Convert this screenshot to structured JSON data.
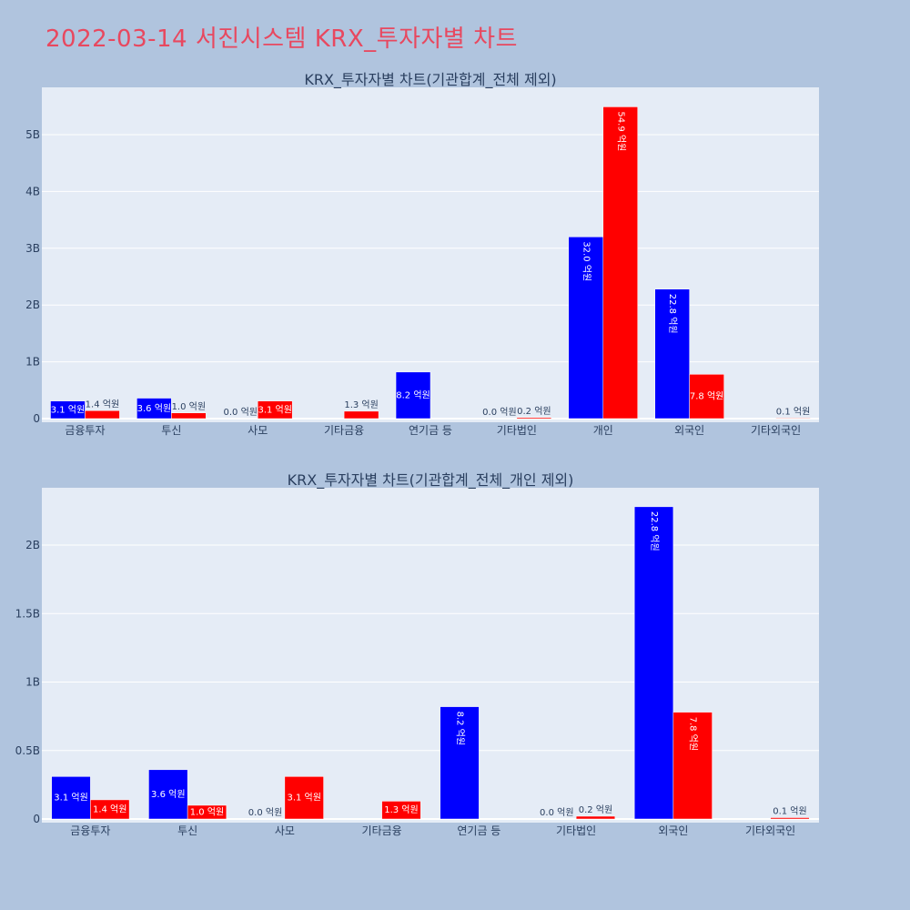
{
  "page": {
    "title": "2022-03-14 서진시스템 KRX_투자자별 차트"
  },
  "colors": {
    "background": "#b0c4de",
    "plot_bg": "#e5ecf6",
    "title": "#e8485f",
    "buy": "#0000ff",
    "sell": "#ff0000"
  },
  "chart_data": [
    {
      "type": "bar",
      "title": "KRX_투자자별 차트(기관합계_전체 제외)",
      "categories": [
        "금융투자",
        "투신",
        "사모",
        "기타금융",
        "연기금 등",
        "기타법인",
        "개인",
        "외국인",
        "기타외국인"
      ],
      "series": [
        {
          "color": "#0000ff",
          "values": [
            310000000,
            360000000,
            0,
            0,
            820000000,
            0,
            3200000000,
            2280000000,
            0
          ],
          "labels": [
            "3.1 억원",
            "3.6 억원",
            "0.0 억원",
            "",
            "8.2 억원",
            "0.0 억원",
            "32.0 억원",
            "22.8 억원",
            ""
          ]
        },
        {
          "color": "#ff0000",
          "values": [
            140000000,
            100000000,
            310000000,
            130000000,
            0,
            20000000,
            5490000000,
            780000000,
            10000000
          ],
          "labels": [
            "1.4 억원",
            "1.0 억원",
            "3.1 억원",
            "1.3 억원",
            "",
            "0.2 억원",
            "54.9 억원",
            "7.8 억원",
            "0.1 억원"
          ]
        }
      ],
      "yticks": [
        0,
        1000000000,
        2000000000,
        3000000000,
        4000000000,
        5000000000
      ],
      "ytick_labels": [
        "0",
        "1B",
        "2B",
        "3B",
        "4B",
        "5B"
      ],
      "ylim": [
        0,
        5780000000
      ],
      "grid": true
    },
    {
      "type": "bar",
      "title": "KRX_투자자별 차트(기관합계_전체_개인 제외)",
      "categories": [
        "금융투자",
        "투신",
        "사모",
        "기타금융",
        "연기금 등",
        "기타법인",
        "외국인",
        "기타외국인"
      ],
      "series": [
        {
          "color": "#0000ff",
          "values": [
            310000000,
            360000000,
            0,
            0,
            820000000,
            0,
            2280000000,
            0
          ],
          "labels": [
            "3.1 억원",
            "3.6 억원",
            "0.0 억원",
            "",
            "8.2 억원",
            "0.0 억원",
            "22.8 억원",
            ""
          ]
        },
        {
          "color": "#ff0000",
          "values": [
            140000000,
            100000000,
            310000000,
            130000000,
            0,
            20000000,
            780000000,
            10000000
          ],
          "labels": [
            "1.4 억원",
            "1.0 억원",
            "3.1 억원",
            "1.3 억원",
            "",
            "0.2 억원",
            "7.8 억원",
            "0.1 억원"
          ]
        }
      ],
      "yticks": [
        0,
        500000000,
        1000000000,
        1500000000,
        2000000000
      ],
      "ytick_labels": [
        "0",
        "0.5B",
        "1B",
        "1.5B",
        "2B"
      ],
      "ylim": [
        0,
        2400000000
      ],
      "grid": true
    }
  ]
}
